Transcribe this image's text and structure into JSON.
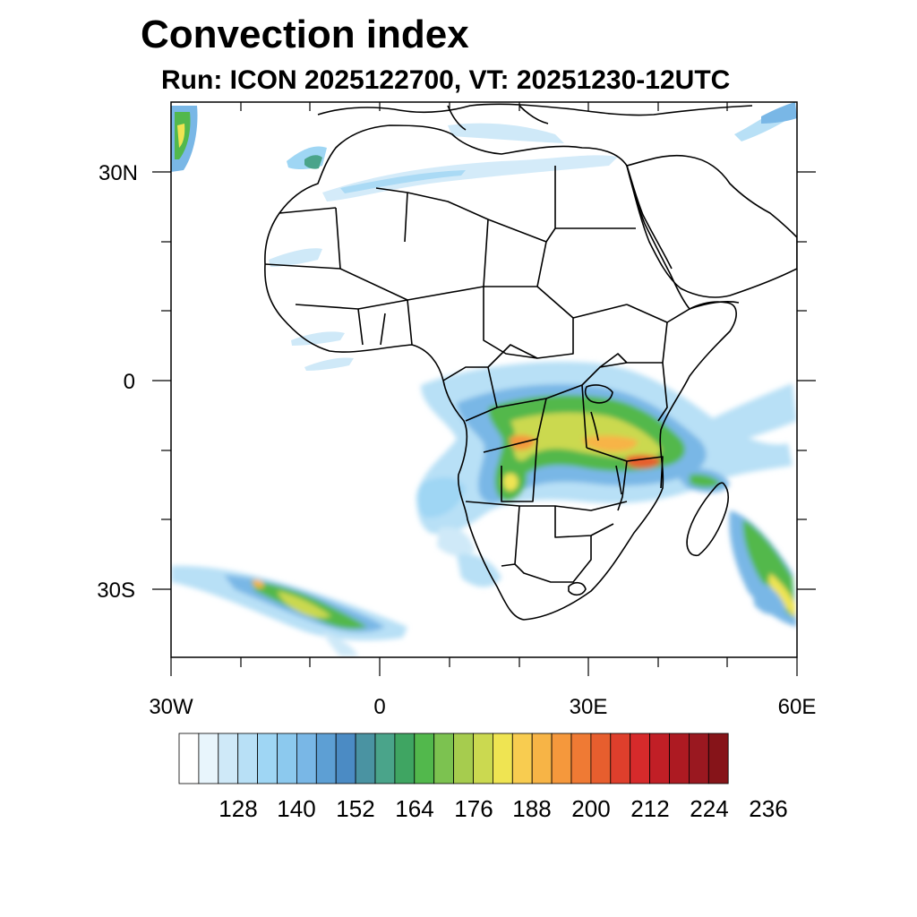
{
  "title": "Convection index",
  "subtitle": "Run: ICON 2025122700,  VT: 20251230-12UTC",
  "map": {
    "region": "Africa",
    "lon_range": [
      -30,
      60
    ],
    "lat_range": [
      -40,
      40
    ],
    "x_ticks": [
      {
        "lon": -30,
        "label": "30W"
      },
      {
        "lon": 0,
        "label": "0"
      },
      {
        "lon": 30,
        "label": "30E"
      },
      {
        "lon": 60,
        "label": "60E"
      }
    ],
    "y_ticks": [
      {
        "lat": 30,
        "label": "30N"
      },
      {
        "lat": 0,
        "label": "0"
      },
      {
        "lat": -30,
        "label": "30S"
      }
    ]
  },
  "colorbar": {
    "colors": [
      "#ffffff",
      "#e8f5fc",
      "#cfe9f8",
      "#b8e0f6",
      "#9fd6f4",
      "#8cc9ee",
      "#79b7e6",
      "#5d9fd4",
      "#4b8bc4",
      "#4a93a2",
      "#4aa48a",
      "#3fa562",
      "#52b84c",
      "#7cc250",
      "#a6cc4e",
      "#cbd950",
      "#efe452",
      "#f8cc50",
      "#f7b446",
      "#f5983c",
      "#ef7a34",
      "#e75e2e",
      "#de3f2c",
      "#d62a2b",
      "#c11f26",
      "#ad1a22",
      "#9a1820",
      "#861419"
    ],
    "labels": [
      "128",
      "140",
      "152",
      "164",
      "176",
      "188",
      "200",
      "212",
      "224",
      "236"
    ]
  }
}
